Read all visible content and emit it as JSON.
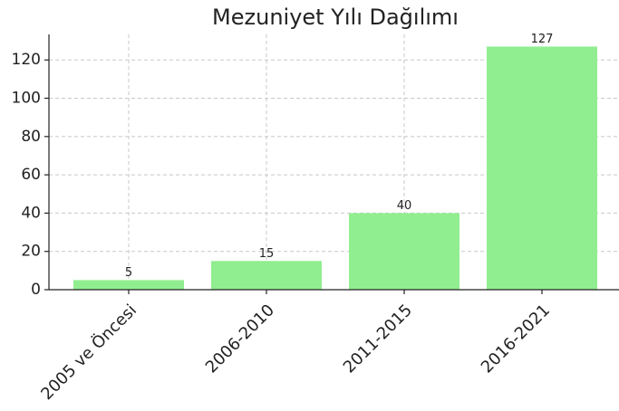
{
  "chart_data": {
    "type": "bar",
    "title": "Mezuniyet Yılı Dağılımı",
    "categories": [
      "2005 ve Öncesi",
      "2006-2010",
      "2011-2015",
      "2016-2021"
    ],
    "values": [
      5,
      15,
      40,
      127
    ],
    "color": "#90ee90",
    "ylim": [
      0,
      133.35
    ],
    "yticks": [
      0,
      20,
      40,
      60,
      80,
      100,
      120
    ],
    "grid": true
  }
}
